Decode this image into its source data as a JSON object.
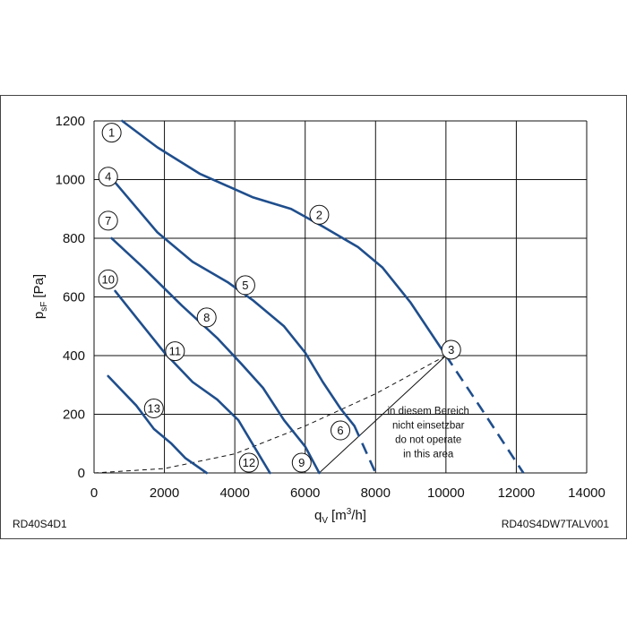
{
  "chart_data": {
    "type": "line",
    "xlabel_base": "q",
    "xlabel_sub": "V",
    "xlabel_unit_pre": "[m",
    "xlabel_unit_sup": "3",
    "xlabel_unit_post": "/h]",
    "ylabel_base": "p",
    "ylabel_sub": "sF",
    "ylabel_unit": "[Pa]",
    "xlim": [
      0,
      14000
    ],
    "ylim": [
      0,
      1200
    ],
    "xticks": [
      "0",
      "2000",
      "4000",
      "6000",
      "8000",
      "10000",
      "12000",
      "14000"
    ],
    "yticks": [
      "0",
      "200",
      "400",
      "600",
      "800",
      "1000",
      "1200"
    ],
    "grid": true,
    "color": "#1f4e8c",
    "series": [
      {
        "points": [
          [
            800,
            1200
          ],
          [
            1800,
            1110
          ],
          [
            3000,
            1020
          ],
          [
            4500,
            940
          ],
          [
            5600,
            900
          ],
          [
            6500,
            840
          ],
          [
            7500,
            770
          ],
          [
            8200,
            700
          ],
          [
            9000,
            580
          ],
          [
            10000,
            400
          ]
        ],
        "dashed": [
          [
            10000,
            400
          ],
          [
            11000,
            220
          ],
          [
            12200,
            0
          ]
        ]
      },
      {
        "points": [
          [
            600,
            990
          ],
          [
            1800,
            820
          ],
          [
            2800,
            720
          ],
          [
            3800,
            650
          ],
          [
            4500,
            590
          ],
          [
            5400,
            500
          ],
          [
            6000,
            410
          ],
          [
            6500,
            310
          ],
          [
            7000,
            220
          ],
          [
            7400,
            160
          ]
        ],
        "dashed": [
          [
            7400,
            160
          ],
          [
            8000,
            0
          ]
        ]
      },
      {
        "points": [
          [
            500,
            800
          ],
          [
            1400,
            700
          ],
          [
            2500,
            570
          ],
          [
            3500,
            460
          ],
          [
            4200,
            370
          ],
          [
            4800,
            290
          ],
          [
            5400,
            180
          ],
          [
            6000,
            90
          ],
          [
            6400,
            0
          ]
        ],
        "dashed": []
      },
      {
        "points": [
          [
            600,
            620
          ],
          [
            1200,
            530
          ],
          [
            2000,
            410
          ],
          [
            2800,
            310
          ],
          [
            3500,
            250
          ],
          [
            4100,
            180
          ],
          [
            4700,
            60
          ],
          [
            5000,
            0
          ]
        ],
        "dashed": []
      },
      {
        "points": [
          [
            400,
            330
          ],
          [
            1200,
            230
          ],
          [
            1700,
            150
          ],
          [
            2200,
            100
          ],
          [
            2600,
            50
          ],
          [
            3200,
            0
          ]
        ],
        "dashed": []
      }
    ],
    "system_curve": [
      [
        0,
        0
      ],
      [
        2000,
        15
      ],
      [
        4000,
        65
      ],
      [
        6000,
        160
      ],
      [
        8000,
        270
      ],
      [
        10000,
        400
      ]
    ],
    "limit_line": [
      [
        6400,
        0
      ],
      [
        10000,
        400
      ]
    ],
    "markers": [
      {
        "label": "1",
        "x": 500,
        "y": 1160
      },
      {
        "label": "2",
        "x": 6400,
        "y": 880
      },
      {
        "label": "3",
        "x": 10150,
        "y": 420
      },
      {
        "label": "4",
        "x": 400,
        "y": 1010
      },
      {
        "label": "5",
        "x": 4300,
        "y": 640
      },
      {
        "label": "6",
        "x": 7000,
        "y": 145
      },
      {
        "label": "7",
        "x": 400,
        "y": 860
      },
      {
        "label": "8",
        "x": 3200,
        "y": 530
      },
      {
        "label": "9",
        "x": 5900,
        "y": 35
      },
      {
        "label": "10",
        "x": 400,
        "y": 660
      },
      {
        "label": "11",
        "x": 2300,
        "y": 415
      },
      {
        "label": "12",
        "x": 4400,
        "y": 35
      },
      {
        "label": "13",
        "x": 1700,
        "y": 220
      }
    ],
    "annotation": [
      "in diesem Bereich",
      "nicht einsetzbar",
      "do not operate",
      "in this area"
    ],
    "annotation_pos": {
      "x": 9500,
      "y": 200
    }
  },
  "footer": {
    "left": "RD40S4D1",
    "right": "RD40S4DW7TALV001"
  }
}
